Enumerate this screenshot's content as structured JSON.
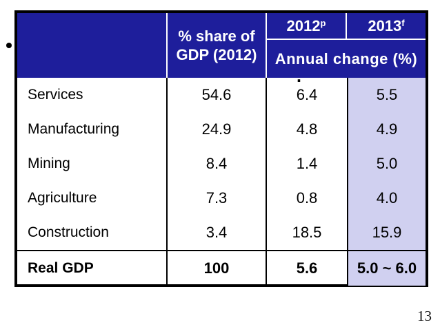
{
  "slide": {
    "page_number": "13",
    "stray_mark": "."
  },
  "table": {
    "columns": {
      "share_header_line1": "% share of",
      "share_header_line2": "GDP (2012)",
      "year_2012": {
        "label": "2012",
        "superscript": "p"
      },
      "year_2013": {
        "label": "2013",
        "superscript": "f"
      },
      "annual_change_header": "Annual change (%)"
    },
    "rows": [
      {
        "label": "Services",
        "share_of_gdp": "54.6",
        "change_2012": "6.4",
        "change_2013": "5.5"
      },
      {
        "label": "Manufacturing",
        "share_of_gdp": "24.9",
        "change_2012": "4.8",
        "change_2013": "4.9"
      },
      {
        "label": "Mining",
        "share_of_gdp": "8.4",
        "change_2012": "1.4",
        "change_2013": "5.0"
      },
      {
        "label": "Agriculture",
        "share_of_gdp": "7.3",
        "change_2012": "0.8",
        "change_2013": "4.0"
      },
      {
        "label": "Construction",
        "share_of_gdp": "3.4",
        "change_2012": "18.5",
        "change_2013": "15.9"
      }
    ],
    "total_row": {
      "label": "Real GDP",
      "share_of_gdp": "100",
      "change_2012": "5.6",
      "change_2013": "5.0 ~ 6.0"
    },
    "colors": {
      "header_bg": "#1e1e9b",
      "header_text": "#ffffff",
      "highlight_column_bg": "#d0d0f0",
      "body_text": "#000000",
      "border": "#000000"
    }
  }
}
